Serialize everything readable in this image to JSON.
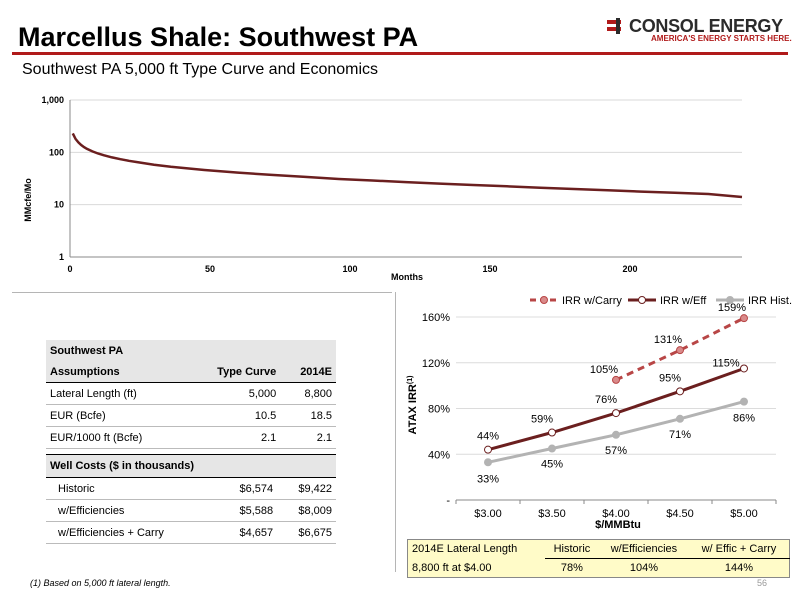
{
  "header": {
    "title": "Marcellus Shale: Southwest PA",
    "subtitle": "Southwest PA 5,000 ft Type Curve and Economics",
    "logo_name": "CONSOL ENERGY",
    "logo_tagline": "AMERICA'S ENERGY STARTS HERE."
  },
  "colors": {
    "accent": "#b01a1a",
    "curve": "#6b1f1f",
    "carry": "#b84646",
    "eff": "#6b1f1f",
    "hist": "#b3b3b3"
  },
  "chart_data": [
    {
      "type": "line",
      "title": "",
      "xlabel": "Months",
      "ylabel": "MMcfe/Mo",
      "yscale": "log",
      "ylim": [
        1,
        1000
      ],
      "xlim": [
        0,
        240
      ],
      "x_ticks": [
        "0",
        "50",
        "100",
        "150",
        "200"
      ],
      "y_ticks": [
        "1",
        "10",
        "100",
        "1,000"
      ],
      "grid": "horizontal",
      "series": [
        {
          "x": [
            1,
            2,
            3,
            4,
            5,
            6,
            8,
            10,
            12,
            15,
            18,
            21,
            24,
            30,
            36,
            48,
            60,
            72,
            84,
            96,
            108,
            120,
            132,
            144,
            156,
            168,
            180,
            192,
            204,
            216,
            228,
            240
          ],
          "values": [
            230,
            180,
            155,
            138,
            126,
            117,
            104,
            95,
            88,
            80,
            74,
            69,
            65,
            58,
            53,
            46,
            41,
            37,
            34,
            31,
            29,
            27,
            25.3,
            23.8,
            22.4,
            21.1,
            19.9,
            18.8,
            17.8,
            16.9,
            16,
            14
          ]
        }
      ]
    },
    {
      "type": "line",
      "xlabel": "$/MMBtu",
      "ylabel": "ATAX IRR(1)",
      "categories": [
        "$3.00",
        "$3.50",
        "$4.00",
        "$4.50",
        "$5.00"
      ],
      "y_ticks": [
        "-",
        "40%",
        "80%",
        "120%",
        "160%"
      ],
      "ylim": [
        0,
        160
      ],
      "legend": "top-right",
      "grid": "horizontal",
      "series": [
        {
          "name": "IRR w/Carry",
          "values": [
            null,
            null,
            105,
            131,
            159
          ],
          "labels": [
            "",
            "",
            "105%",
            "131%",
            "159%"
          ]
        },
        {
          "name": "IRR w/Eff",
          "values": [
            44,
            59,
            76,
            95,
            115
          ],
          "labels": [
            "44%",
            "59%",
            "76%",
            "95%",
            "115%"
          ]
        },
        {
          "name": "IRR Hist.",
          "values": [
            33,
            45,
            57,
            71,
            86
          ],
          "labels": [
            "33%",
            "45%",
            "57%",
            "71%",
            "86%"
          ]
        }
      ]
    }
  ],
  "assumptions": {
    "header_line1": "Southwest PA",
    "header_line2": "Assumptions",
    "col_type": "Type Curve",
    "col_2014": "2014E",
    "rows": [
      {
        "label": "Lateral Length (ft)",
        "type": "5,000",
        "y2014": "8,800"
      },
      {
        "label": "EUR (Bcfe)",
        "type": "10.5",
        "y2014": "18.5"
      },
      {
        "label": "EUR/1000 ft (Bcfe)",
        "type": "2.1",
        "y2014": "2.1"
      }
    ]
  },
  "well_costs": {
    "header": "Well Costs ($ in thousands)",
    "rows": [
      {
        "label": "Historic",
        "type": "$6,574",
        "y2014": "$9,422"
      },
      {
        "label": "w/Efficiencies",
        "type": "$5,588",
        "y2014": "$8,009"
      },
      {
        "label": "w/Efficiencies + Carry",
        "type": "$4,657",
        "y2014": "$6,675"
      }
    ]
  },
  "irr_table": {
    "h_label": "2014E Lateral Length",
    "h_hist": "Historic",
    "h_eff": "w/Efficiencies",
    "h_carry": "w/ Effic + Carry",
    "r_label": "8,800 ft at $4.00",
    "r_hist": "78%",
    "r_eff": "104%",
    "r_carry": "144%"
  },
  "footnote": "(1)  Based on 5,000 ft lateral length.",
  "page_number": "56"
}
